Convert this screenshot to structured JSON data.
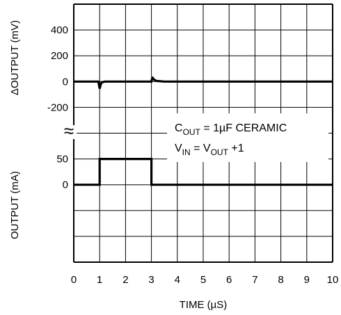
{
  "chart_data": [
    {
      "type": "line",
      "title": "",
      "ylabel": "ΔOUTPUT (mV)",
      "ylim": [
        -200,
        400
      ],
      "yticks": [
        "400",
        "200",
        "0",
        "-200"
      ],
      "grid": true,
      "series": [
        {
          "values_x": [
            0,
            0.95,
            1.0,
            1.02,
            1.05,
            1.1,
            1.2,
            1.5,
            3.0,
            3.02,
            3.05,
            3.1,
            3.2,
            3.5,
            10
          ],
          "values_y": [
            0,
            0,
            -55,
            -40,
            -15,
            -5,
            0,
            0,
            0,
            18,
            28,
            15,
            5,
            0,
            0
          ]
        }
      ]
    },
    {
      "type": "line",
      "title": "",
      "ylabel": "OUTPUT (mA)",
      "yticks": [
        "50",
        "0"
      ],
      "grid": true,
      "series": [
        {
          "values_x": [
            0,
            1,
            1,
            3,
            3,
            10
          ],
          "values_y": [
            0,
            0,
            50,
            50,
            0,
            0
          ]
        }
      ]
    }
  ],
  "shared_x": {
    "label": "TIME (µS)",
    "ticks": [
      "0",
      "1",
      "2",
      "3",
      "4",
      "5",
      "6",
      "7",
      "8",
      "9",
      "10"
    ],
    "xlim": [
      0,
      10
    ]
  },
  "annotations": {
    "line1_main": "C",
    "line1_sub": "OUT",
    "line1_rest": " = 1µF CERAMIC",
    "line2_main": "V",
    "line2_sub": "IN",
    "line2_mid": " = V",
    "line2_sub2": "OUT",
    "line2_rest": " +1"
  },
  "break_symbol": "≈"
}
